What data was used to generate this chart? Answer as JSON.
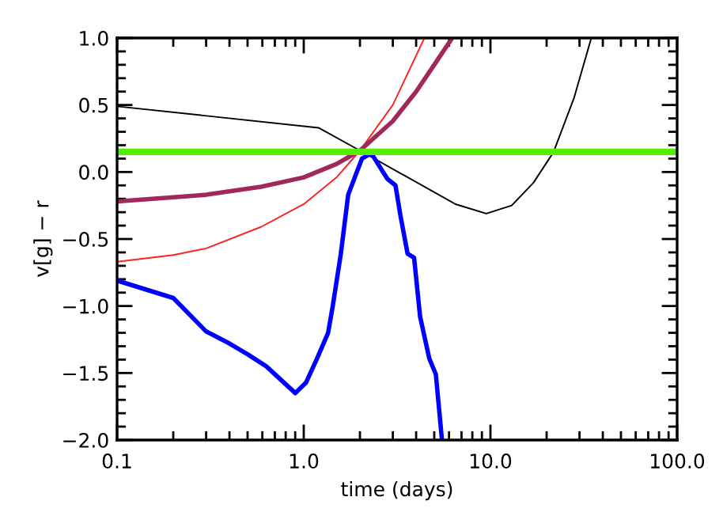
{
  "chart_data": {
    "type": "line",
    "xlabel": "time (days)",
    "ylabel": "v[g] − r",
    "log": "x",
    "xlim": [
      0.1,
      100
    ],
    "xticks": [
      {
        "value": 0.1,
        "label": "0.1"
      },
      {
        "value": 1,
        "label": "1.0"
      },
      {
        "value": 10,
        "label": "10.0"
      },
      {
        "value": 100,
        "label": "100.0"
      }
    ],
    "ylim": [
      -2.0,
      1.0
    ],
    "yticks": [
      {
        "value": -2,
        "label": "−2.0"
      },
      {
        "value": -1.5,
        "label": "−1.5"
      },
      {
        "value": -1,
        "label": "−1.0"
      },
      {
        "value": -0.5,
        "label": "−0.5"
      },
      {
        "value": 0,
        "label": "0.0"
      },
      {
        "value": 0.5,
        "label": "0.5"
      },
      {
        "value": 1,
        "label": "1.0"
      }
    ],
    "grid": false,
    "marker": "none",
    "line_style": "solid",
    "series": [
      {
        "color": "#000000",
        "x": [
          0.1,
          1.2,
          2.0,
          6.5,
          9.5,
          13,
          17,
          21.8,
          28,
          34.7
        ],
        "values": [
          0.49,
          0.33,
          0.16,
          -0.24,
          -0.31,
          -0.25,
          -0.08,
          0.15,
          0.55,
          1.0
        ]
      },
      {
        "color": "#ff2020",
        "x": [
          0.1,
          0.2,
          0.3,
          0.59,
          1.0,
          1.5,
          2.0,
          3.0,
          4.43
        ],
        "values": [
          -0.67,
          -0.62,
          -0.57,
          -0.41,
          -0.24,
          -0.04,
          0.16,
          0.5,
          1.0
        ]
      },
      {
        "color": "#a0285a",
        "x": [
          0.1,
          0.3,
          0.59,
          1.0,
          1.5,
          2.0,
          3.0,
          4.0,
          5.0,
          6.24
        ],
        "values": [
          -0.22,
          -0.17,
          -0.11,
          -0.04,
          0.06,
          0.16,
          0.38,
          0.6,
          0.8,
          1.0
        ]
      },
      {
        "color": "#0000ff",
        "x": [
          0.1,
          0.2,
          0.3,
          0.4,
          0.5,
          0.63,
          0.87,
          0.9,
          1.03,
          1.18,
          1.35,
          1.43,
          1.58,
          1.73,
          1.9,
          2.05,
          2.3,
          2.8,
          3.1,
          3.3,
          3.6,
          3.9,
          4.2,
          4.7,
          5.1,
          5.5
        ],
        "values": [
          -0.81,
          -0.94,
          -1.19,
          -1.28,
          -1.36,
          -1.45,
          -1.63,
          -1.65,
          -1.57,
          -1.39,
          -1.2,
          -1.0,
          -0.61,
          -0.17,
          -0.02,
          0.1,
          0.14,
          -0.05,
          -0.1,
          -0.33,
          -0.61,
          -0.64,
          -1.08,
          -1.39,
          -1.51,
          -2.0
        ]
      },
      {
        "color": "#55ee00",
        "x": [
          0.1,
          100
        ],
        "values": [
          0.15,
          0.15
        ]
      }
    ]
  }
}
